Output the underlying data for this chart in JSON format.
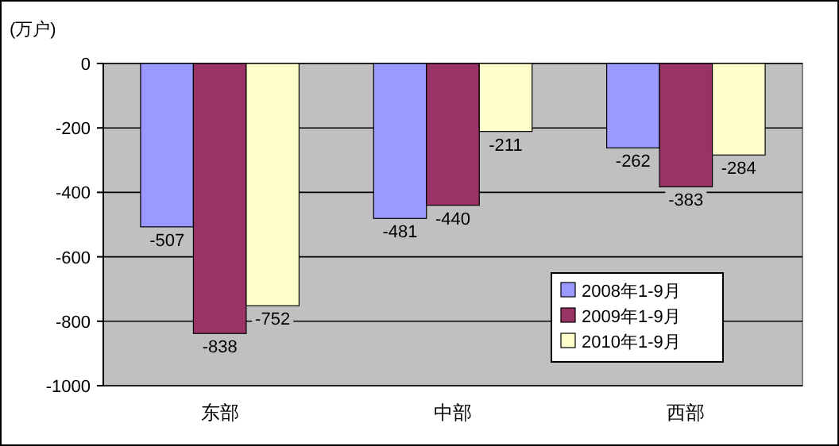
{
  "chart_data": {
    "type": "bar",
    "ylabel": "(万户)",
    "categories": [
      "东部",
      "中部",
      "西部"
    ],
    "series": [
      {
        "name": "2008年1-9月",
        "color": "#9999ff",
        "values": [
          -507,
          -481,
          -262
        ]
      },
      {
        "name": "2009年1-9月",
        "color": "#993366",
        "values": [
          -838,
          -440,
          -383
        ]
      },
      {
        "name": "2010年1-9月",
        "color": "#ffffcc",
        "values": [
          -752,
          -211,
          -284
        ]
      }
    ],
    "ylim": [
      -1000,
      0
    ],
    "yticks": [
      -1000,
      -800,
      -600,
      -400,
      -200,
      0
    ],
    "grid": "y",
    "legend": "bottom right",
    "data_labels": true
  }
}
